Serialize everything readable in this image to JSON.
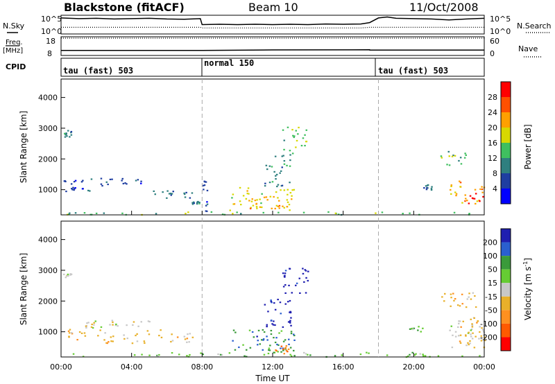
{
  "header": {
    "station": "Blackstone (fitACF)",
    "beam": "Beam 10",
    "date": "11/Oct/2008"
  },
  "noise_panel": {
    "left_label": "N.Sky",
    "right_label": "N.Search",
    "left_ticks": [
      "10^5",
      "10^0"
    ],
    "right_ticks": [
      "10^5",
      "10^0"
    ]
  },
  "freq_panel": {
    "left_label": "Freq.",
    "left_unit": "[MHz]",
    "right_label": "Nave",
    "left_ticks": [
      "18",
      "8"
    ],
    "right_ticks": [
      "60",
      "0"
    ]
  },
  "cpid_panel": {
    "label": "CPID",
    "segments": [
      {
        "text": "tau (fast) 503",
        "start_h": 0
      },
      {
        "text": "normal 150",
        "start_h": 8
      },
      {
        "text": "tau (fast) 503",
        "start_h": 18
      }
    ]
  },
  "x_axis": {
    "label": "Time UT",
    "ticks": [
      "00:00",
      "04:00",
      "08:00",
      "12:00",
      "16:00",
      "20:00",
      "00:00"
    ]
  },
  "colors": {
    "power_scale": [
      "#0000ff",
      "#1f3ea1",
      "#2f7f7f",
      "#3fbf5f",
      "#d8d800",
      "#ffa000",
      "#ff5000",
      "#ff0000"
    ],
    "velocity_scale": [
      "#1f1fb0",
      "#2a5fcf",
      "#3a9a3a",
      "#66cc33",
      "#c8c8c8",
      "#e8b02a",
      "#ff9020",
      "#ff5a00",
      "#ff0000"
    ]
  },
  "chart_data": [
    {
      "type": "line",
      "name": "noise",
      "x": [
        0,
        0.5,
        1,
        2,
        3,
        4,
        5,
        6,
        7,
        7.9,
        8.0,
        9,
        10,
        11,
        12,
        13,
        14,
        15,
        16,
        17,
        17.5,
        18,
        18.5,
        19,
        20,
        21,
        22,
        23,
        24
      ],
      "series": [
        {
          "values": [
            4.6,
            4.5,
            4.4,
            4.5,
            4.3,
            4.4,
            4.5,
            4.3,
            4.2,
            4.4,
            2.6,
            2.7,
            2.6,
            2.7,
            2.6,
            2.7,
            2.6,
            2.8,
            2.7,
            2.8,
            3.2,
            4.6,
            4.9,
            4.5,
            4.4,
            4.3,
            4.0,
            4.3,
            4.5
          ]
        },
        {
          "values": [
            1.8,
            1.8,
            1.8,
            1.8,
            1.8,
            1.8,
            1.8,
            1.8,
            1.8,
            1.8,
            1.6,
            1.6,
            1.6,
            1.6,
            1.6,
            1.6,
            1.6,
            1.6,
            1.6,
            1.6,
            1.8,
            1.8,
            1.8,
            1.8,
            1.8,
            1.8,
            1.8,
            1.8,
            1.8
          ]
        }
      ],
      "ylim": [
        0,
        5
      ]
    },
    {
      "type": "line",
      "name": "frequency",
      "x": [
        0,
        8,
        8.01,
        12,
        17.5,
        17.51,
        24
      ],
      "series": [
        {
          "values": [
            10.6,
            10.6,
            10.6,
            10.9,
            11.0,
            10.8,
            10.8
          ]
        },
        {
          "values": [
            18,
            18,
            18,
            18,
            18,
            18,
            18
          ]
        }
      ],
      "ylim": [
        8,
        18
      ]
    },
    {
      "type": "heatmap",
      "ylabel": "Slant Range [km]",
      "colorbar_label": "Power [dB]",
      "colorbar_ticks": [
        4,
        8,
        12,
        16,
        20,
        24,
        28
      ],
      "xlim": [
        0,
        24
      ],
      "ylim": [
        180,
        4600
      ],
      "yticks": [
        1000,
        2000,
        3000,
        4000
      ],
      "features": [
        {
          "x": [
            0.1,
            0.6
          ],
          "y": [
            2700,
            2950
          ],
          "level": 2
        },
        {
          "x": [
            0.1,
            5.2
          ],
          "y": [
            1150,
            1400
          ],
          "level": 1
        },
        {
          "x": [
            0.2,
            1.6
          ],
          "y": [
            950,
            1100
          ],
          "level": 1
        },
        {
          "x": [
            5.0,
            7.5
          ],
          "y": [
            700,
            1000
          ],
          "level": 2
        },
        {
          "x": [
            7.0,
            8.0
          ],
          "y": [
            550,
            650
          ],
          "level": 2
        },
        {
          "x": [
            0,
            24
          ],
          "y": [
            200,
            300
          ],
          "level": 3
        },
        {
          "x": [
            8.0,
            8.3
          ],
          "y": [
            300,
            1400
          ],
          "level": 1
        },
        {
          "x": [
            9.5,
            13.2
          ],
          "y": [
            350,
            1100
          ],
          "level": 4
        },
        {
          "x": [
            10.5,
            13.2
          ],
          "y": [
            400,
            800
          ],
          "level": 5
        },
        {
          "x": [
            11.5,
            13.0
          ],
          "y": [
            1100,
            2200
          ],
          "level": 2
        },
        {
          "x": [
            12.5,
            14.0
          ],
          "y": [
            2200,
            3100
          ],
          "level": 3
        },
        {
          "x": [
            20.5,
            21.0
          ],
          "y": [
            1000,
            1200
          ],
          "level": 2
        },
        {
          "x": [
            21.5,
            23.0
          ],
          "y": [
            1800,
            2300
          ],
          "level": 3
        },
        {
          "x": [
            22.0,
            24.0
          ],
          "y": [
            500,
            1300
          ],
          "level": 5
        },
        {
          "x": [
            23.0,
            24.0
          ],
          "y": [
            500,
            900
          ],
          "level": 7
        }
      ]
    },
    {
      "type": "heatmap",
      "ylabel": "Slant Range [km]",
      "colorbar_label": "Velocity [m s^-1]",
      "colorbar_ticks": [
        200,
        100,
        50,
        15,
        -15,
        -50,
        -100,
        -200
      ],
      "xlim": [
        0,
        24
      ],
      "ylim": [
        180,
        4600
      ],
      "yticks": [
        1000,
        2000,
        3000,
        4000
      ],
      "features": [
        {
          "x": [
            0.1,
            0.6
          ],
          "y": [
            2750,
            2950
          ],
          "level": 4
        },
        {
          "x": [
            0.1,
            5.0
          ],
          "y": [
            1150,
            1400
          ],
          "level": 4
        },
        {
          "x": [
            0.1,
            7.5
          ],
          "y": [
            650,
            1100
          ],
          "level": 5
        },
        {
          "x": [
            0,
            24
          ],
          "y": [
            200,
            350
          ],
          "level": 3
        },
        {
          "x": [
            9.5,
            13.2
          ],
          "y": [
            350,
            1100
          ],
          "level": 2
        },
        {
          "x": [
            11.0,
            12.5
          ],
          "y": [
            600,
            900
          ],
          "level": 1
        },
        {
          "x": [
            12.0,
            13.0
          ],
          "y": [
            300,
            600
          ],
          "level": 6
        },
        {
          "x": [
            11.5,
            13.0
          ],
          "y": [
            1100,
            2200
          ],
          "level": 0
        },
        {
          "x": [
            12.5,
            14.0
          ],
          "y": [
            2200,
            3100
          ],
          "level": 0
        },
        {
          "x": [
            19.5,
            20.5
          ],
          "y": [
            1000,
            1200
          ],
          "level": 3
        },
        {
          "x": [
            21.5,
            23.5
          ],
          "y": [
            1800,
            2300
          ],
          "level": 5
        },
        {
          "x": [
            22.0,
            24.0
          ],
          "y": [
            500,
            1400
          ],
          "level": 4
        },
        {
          "x": [
            22.5,
            24.0
          ],
          "y": [
            500,
            1500
          ],
          "level": 5
        }
      ]
    }
  ]
}
